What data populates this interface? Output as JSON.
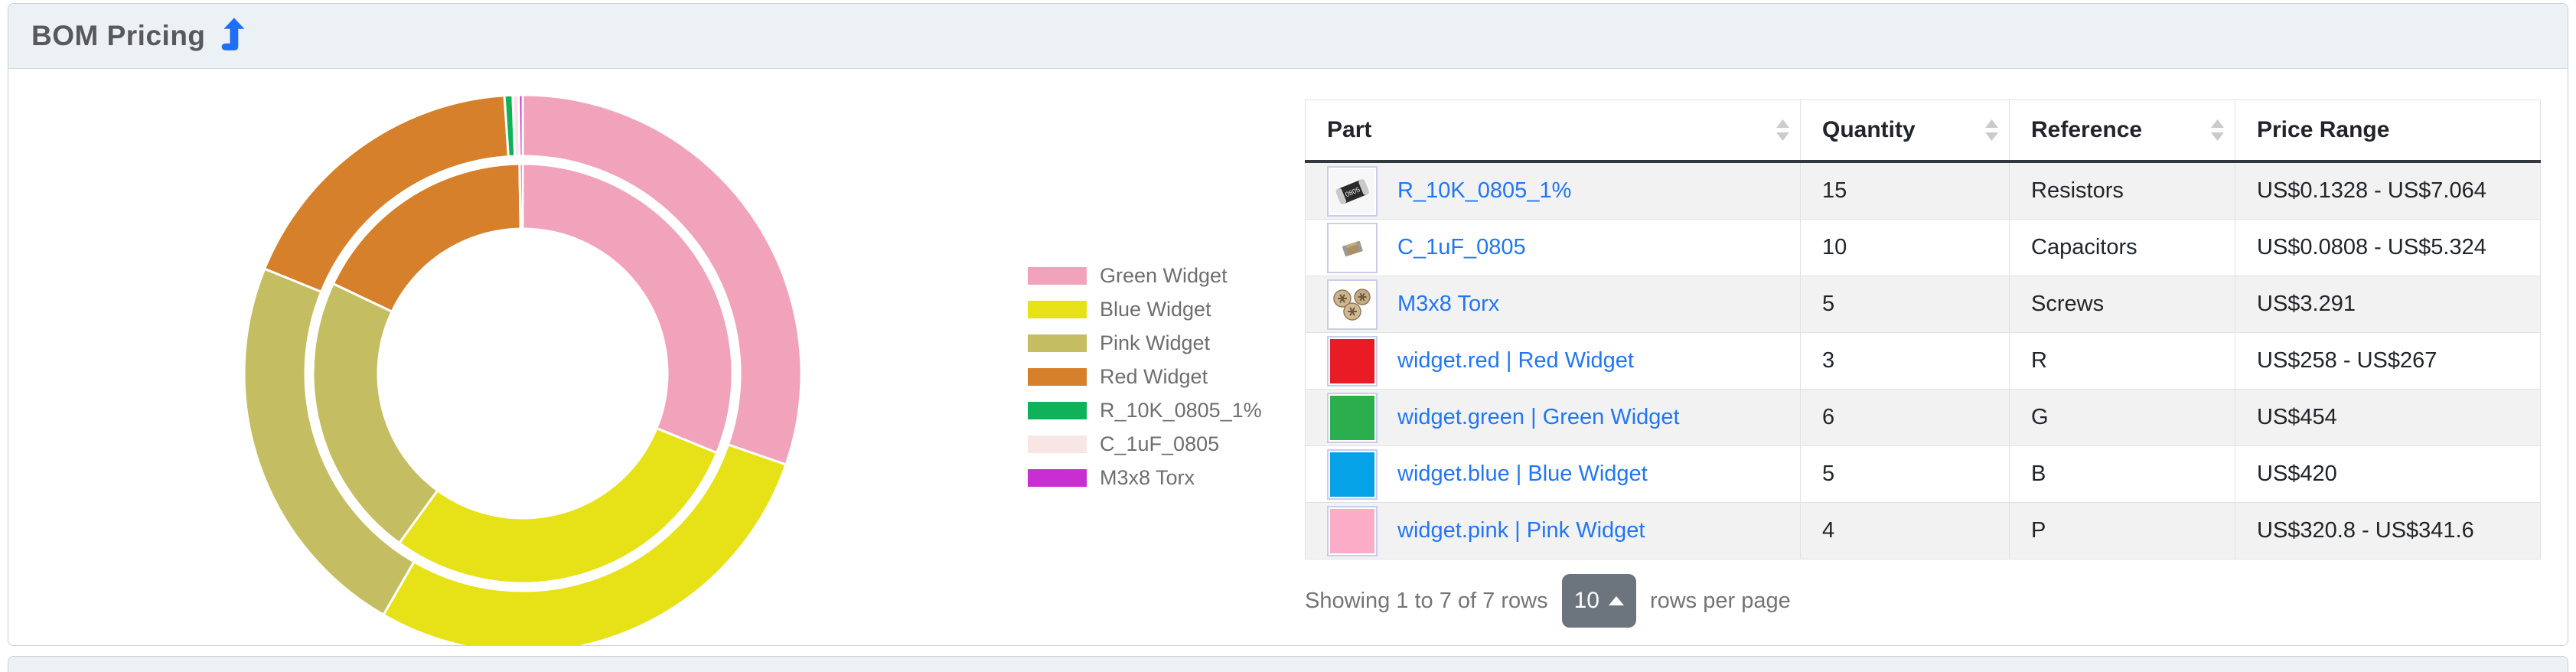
{
  "panel": {
    "title": "BOM Pricing",
    "title_icon": "level-up-arrow-icon",
    "header_bg": "#ecf1f6",
    "accent_blue": "#1e6ff5"
  },
  "chart_data": {
    "type": "donut",
    "labels": [
      "Green Widget",
      "Blue Widget",
      "Pink Widget",
      "Red Widget",
      "R_10K_0805_1%",
      "C_1uF_0805",
      "M3x8 Torx"
    ],
    "colors": [
      "#F2A3BC",
      "#E7E118",
      "#C5BD62",
      "#D6802B",
      "#0FB259",
      "#F8E6E4",
      "#C82ED2"
    ],
    "series": [
      {
        "name": "outer-ring-max-total-price",
        "radius_outer": 364,
        "radius_inner": 284,
        "values": [
          454,
          420,
          341.6,
          267,
          7.064,
          5.324,
          3.291
        ]
      },
      {
        "name": "inner-ring-min-total-price",
        "radius_outer": 274,
        "radius_inner": 189,
        "values": [
          454,
          420,
          320.8,
          258,
          0.1328,
          0.0808,
          3.291
        ]
      }
    ],
    "start_angle": "12-oclock",
    "direction": "clockwise",
    "legend_position": "right",
    "segment_stroke": "#ffffff"
  },
  "table": {
    "columns": [
      {
        "label": "Part",
        "sortable": true
      },
      {
        "label": "Quantity",
        "sortable": true
      },
      {
        "label": "Reference",
        "sortable": true
      },
      {
        "label": "Price Range",
        "sortable": false
      }
    ],
    "rows": [
      {
        "part": "R_10K_0805_1%",
        "thumb": "resistor-photo",
        "swatch_color": "",
        "quantity": "15",
        "reference": "Resistors",
        "price_range": "US$0.1328 - US$7.064"
      },
      {
        "part": "C_1uF_0805",
        "thumb": "capacitor-photo",
        "swatch_color": "",
        "quantity": "10",
        "reference": "Capacitors",
        "price_range": "US$0.0808 - US$5.324"
      },
      {
        "part": "M3x8 Torx",
        "thumb": "screws-photo",
        "swatch_color": "",
        "quantity": "5",
        "reference": "Screws",
        "price_range": "US$3.291"
      },
      {
        "part": "widget.red | Red Widget",
        "thumb": "color-swatch",
        "swatch_color": "#E91C26",
        "quantity": "3",
        "reference": "R",
        "price_range": "US$258 - US$267"
      },
      {
        "part": "widget.green | Green Widget",
        "thumb": "color-swatch",
        "swatch_color": "#2BAF4E",
        "quantity": "6",
        "reference": "G",
        "price_range": "US$454"
      },
      {
        "part": "widget.blue | Blue Widget",
        "thumb": "color-swatch",
        "swatch_color": "#06A1E6",
        "quantity": "5",
        "reference": "B",
        "price_range": "US$420"
      },
      {
        "part": "widget.pink | Pink Widget",
        "thumb": "color-swatch",
        "swatch_color": "#FBADC7",
        "quantity": "4",
        "reference": "P",
        "price_range": "US$320.8 - US$341.6"
      }
    ]
  },
  "pagination": {
    "summary": "Showing 1 to 7 of 7 rows",
    "page_size": "10",
    "caret": "up",
    "suffix": "rows per page"
  }
}
